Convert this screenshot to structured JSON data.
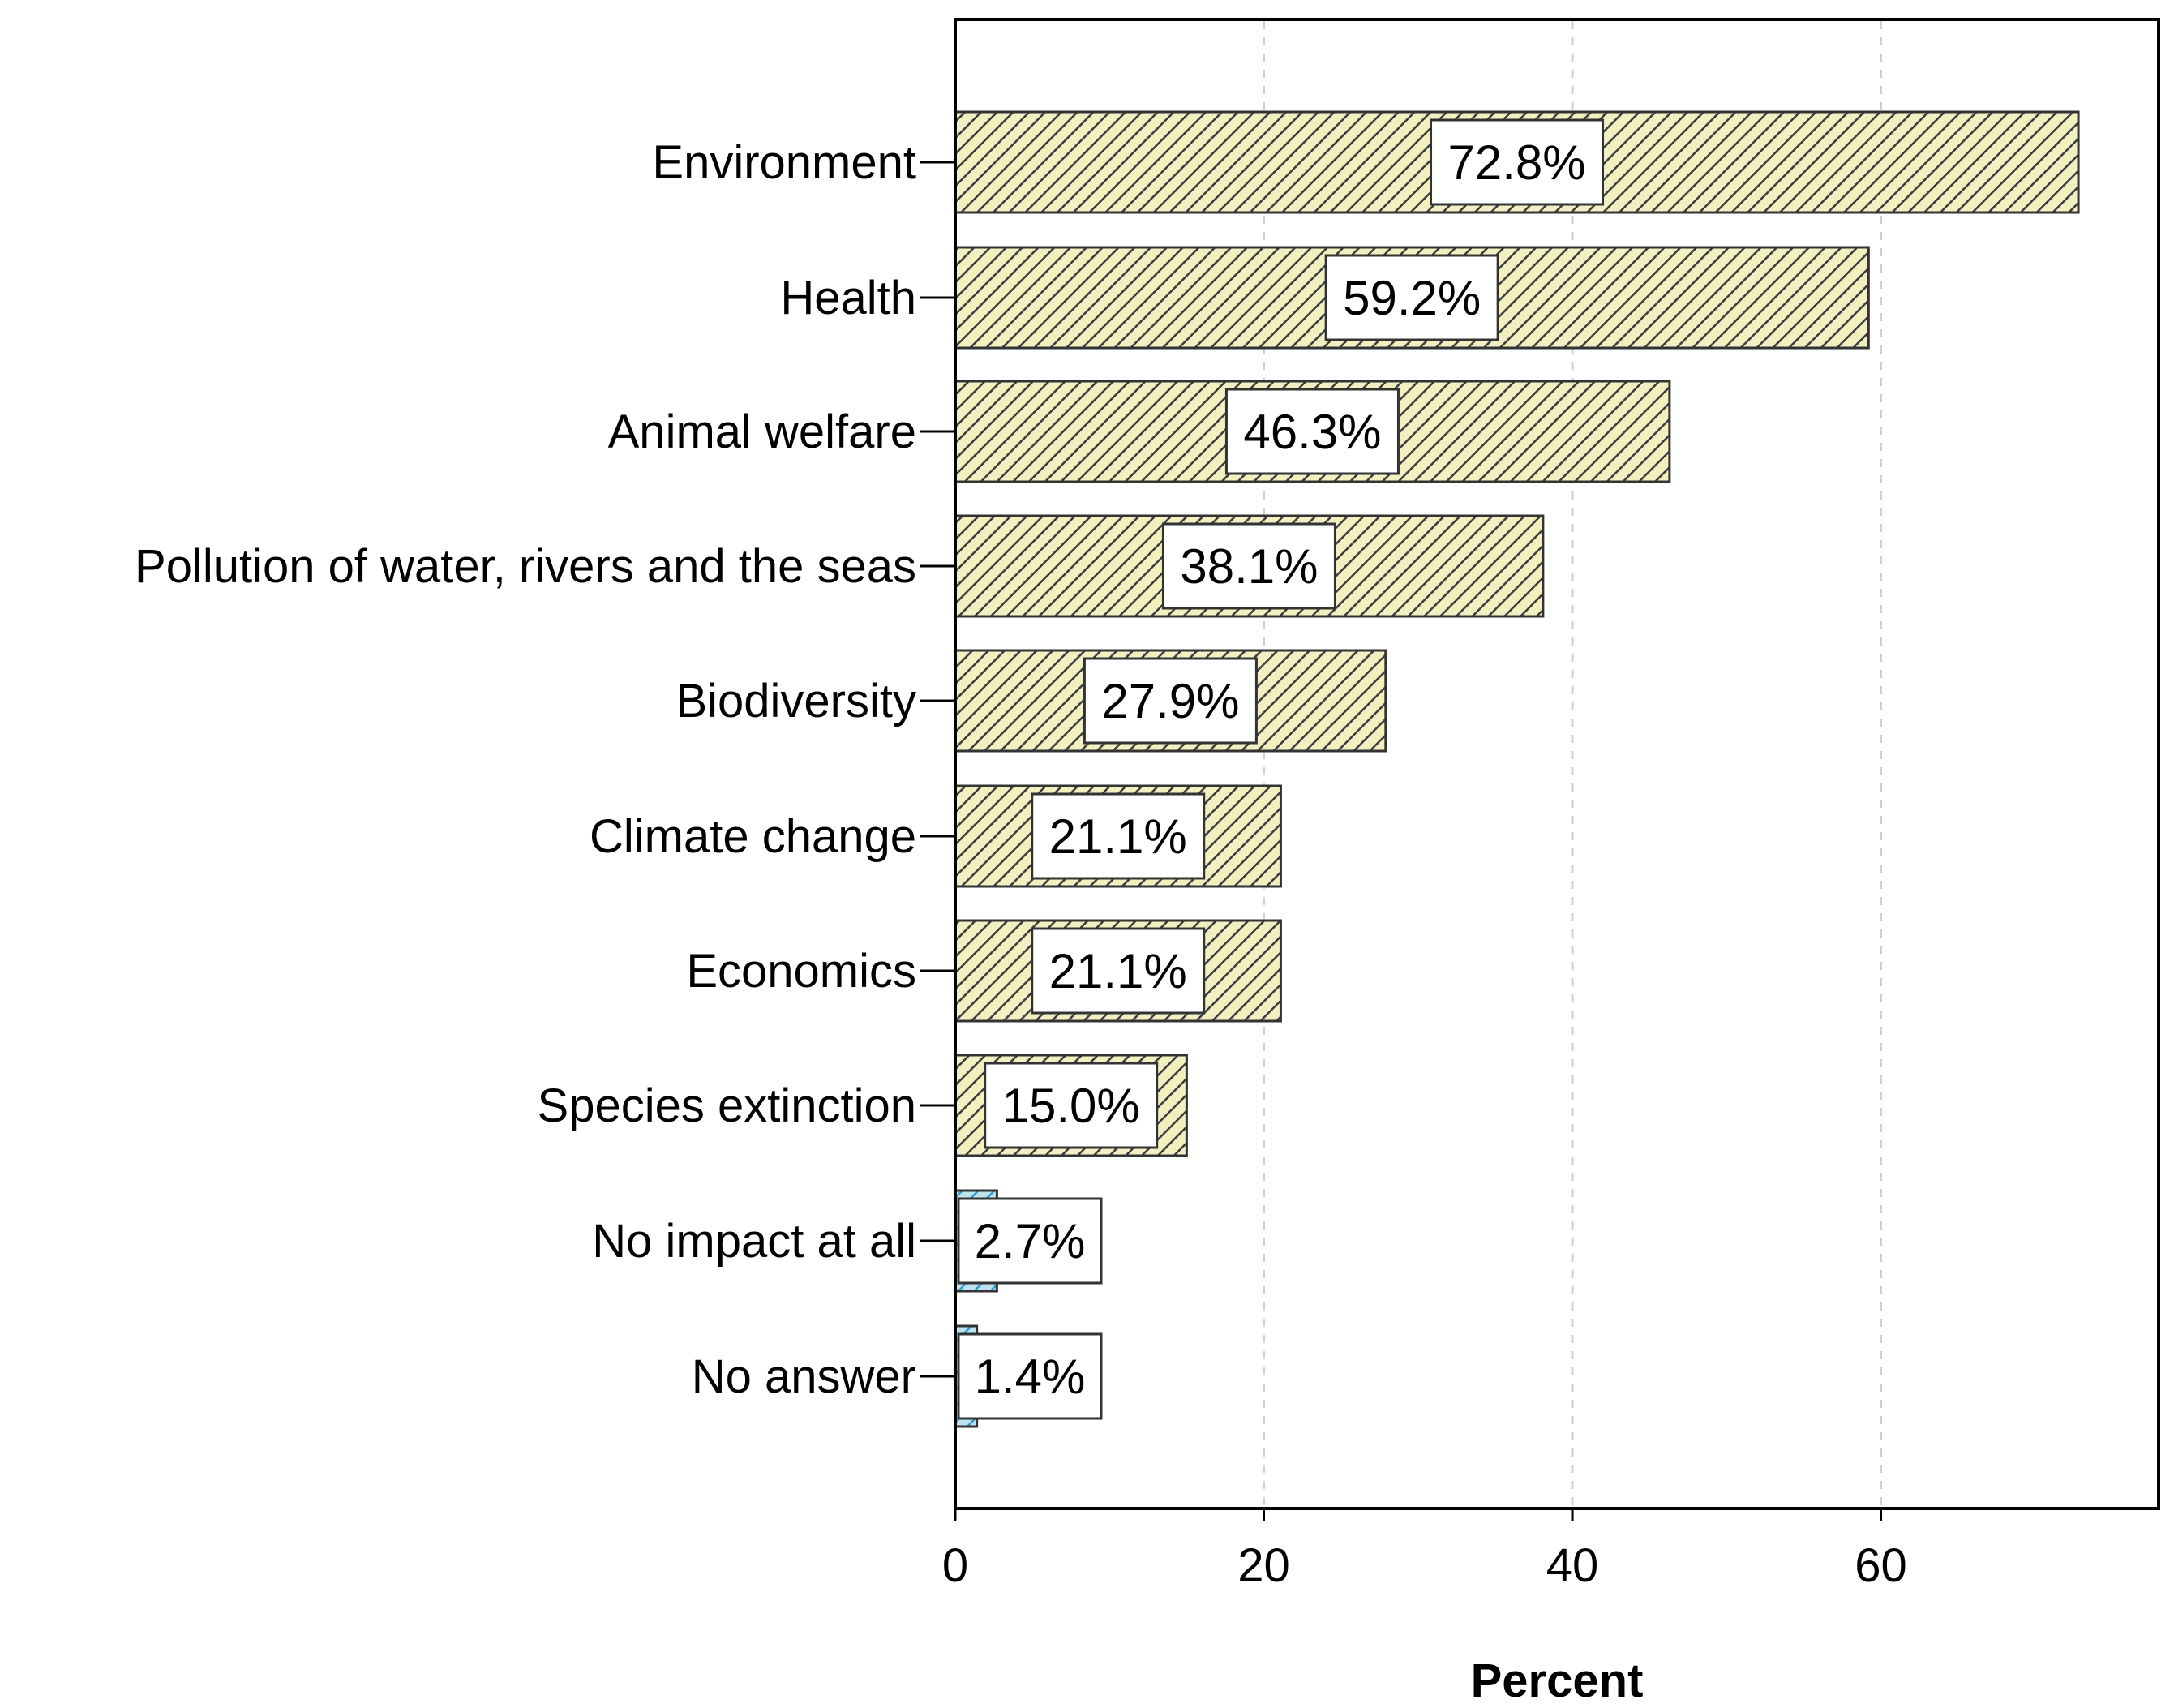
{
  "chart_data": {
    "type": "bar",
    "orientation": "horizontal",
    "title": "",
    "xlabel": "Percent",
    "ylabel": "",
    "xlim": [
      0,
      78
    ],
    "xticks": [
      0,
      20,
      40,
      60
    ],
    "xtick_labels": [
      "0",
      "20",
      "40",
      "60"
    ],
    "grid": "vertical dashed at ticks",
    "categories": [
      "Environment",
      "Health",
      "Animal welfare",
      "Pollution of water, rivers and the seas",
      "Biodiversity",
      "Climate change",
      "Economics",
      "Species extinction",
      "No impact at all",
      "No answer"
    ],
    "values": [
      72.8,
      59.2,
      46.3,
      38.1,
      27.9,
      21.1,
      21.1,
      15.0,
      2.7,
      1.4
    ],
    "data_labels": [
      "72.8%",
      "59.2%",
      "46.3%",
      "38.1%",
      "27.9%",
      "21.1%",
      "21.1%",
      "15.0%",
      "2.7%",
      "1.4%"
    ],
    "bar_styles": [
      "impact",
      "impact",
      "impact",
      "impact",
      "impact",
      "impact",
      "impact",
      "impact",
      "no-impact",
      "no-impact"
    ]
  },
  "colors": {
    "impact_fill": "#f2f0c0",
    "impact_hatch": "#3c3c3c",
    "no_impact_fill": "#bfe3ee",
    "no_impact_hatch": "#2e9fc9",
    "bar_border": "#333333",
    "grid": "#cfcfcf",
    "frame": "#000000"
  }
}
